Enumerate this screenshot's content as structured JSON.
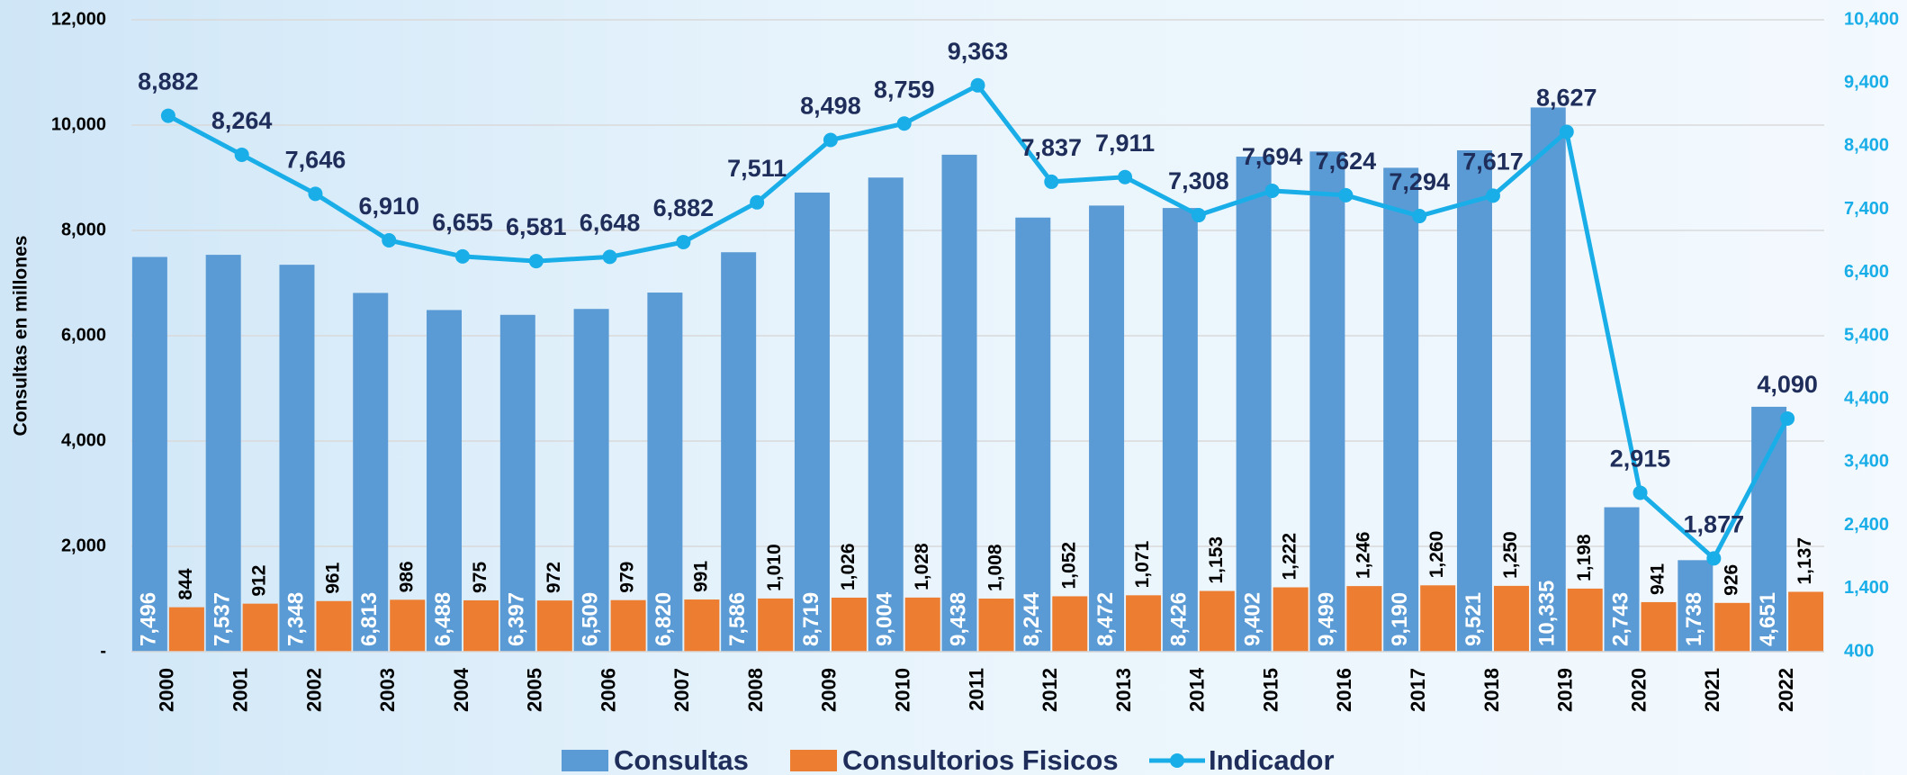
{
  "chart_data": {
    "type": "bar",
    "y_label": "Consultas en millones",
    "categories": [
      "2000",
      "2001",
      "2002",
      "2003",
      "2004",
      "2005",
      "2006",
      "2007",
      "2008",
      "2009",
      "2010",
      "2011",
      "2012",
      "2013",
      "2014",
      "2015",
      "2016",
      "2017",
      "2018",
      "2019",
      "2020",
      "2021",
      "2022"
    ],
    "series": [
      {
        "name": "Consultas",
        "color": "#5b9bd5",
        "values": [
          7496,
          7537,
          7348,
          6813,
          6488,
          6397,
          6509,
          6820,
          7586,
          8719,
          9004,
          9438,
          8244,
          8472,
          8426,
          9402,
          9499,
          9190,
          9521,
          10335,
          2743,
          1738,
          4651
        ],
        "value_labels": [
          "7,496",
          "7,537",
          "7,348",
          "6,813",
          "6,488",
          "6,397",
          "6,509",
          "6,820",
          "7,586",
          "8,719",
          "9,004",
          "9,438",
          "8,244",
          "8,472",
          "8,426",
          "9,402",
          "9,499",
          "9,190",
          "9,521",
          "10,335",
          "2,743",
          "1,738",
          "4,651"
        ]
      },
      {
        "name": "Consultorios Fisicos",
        "color": "#ed7d31",
        "values": [
          844,
          912,
          961,
          986,
          975,
          972,
          979,
          991,
          1010,
          1026,
          1028,
          1008,
          1052,
          1071,
          1153,
          1222,
          1246,
          1260,
          1250,
          1198,
          941,
          926,
          1137
        ],
        "value_labels": [
          "844",
          "912",
          "961",
          "986",
          "975",
          "972",
          "979",
          "991",
          "1,010",
          "1,026",
          "1,028",
          "1,008",
          "1,052",
          "1,071",
          "1,153",
          "1,222",
          "1,246",
          "1,260",
          "1,250",
          "1,198",
          "941",
          "926",
          "1,137"
        ]
      },
      {
        "name": "Indicador",
        "color": "#1aaee8",
        "type": "line",
        "axis": "y2",
        "values": [
          8882,
          8264,
          7646,
          6910,
          6655,
          6581,
          6648,
          6882,
          7511,
          8498,
          8759,
          9363,
          7837,
          7911,
          7308,
          7694,
          7624,
          7294,
          7617,
          8627,
          2915,
          1877,
          4090
        ],
        "value_labels": [
          "8,882",
          "8,264",
          "7,646",
          "6,910",
          "6,655",
          "6,581",
          "6,648",
          "6,882",
          "7,511",
          "8,498",
          "8,759",
          "9,363",
          "7,837",
          "7,911",
          "7,308",
          "7,694",
          "7,624",
          "7,294",
          "7,617",
          "8,627",
          "2,915",
          "1,877",
          "4,090"
        ]
      }
    ],
    "ylim": [
      0,
      12000
    ],
    "yticks": [
      {
        "value": 0,
        "label": "-"
      },
      {
        "value": 2000,
        "label": "2,000"
      },
      {
        "value": 4000,
        "label": "4,000"
      },
      {
        "value": 6000,
        "label": "6,000"
      },
      {
        "value": 8000,
        "label": "8,000"
      },
      {
        "value": 10000,
        "label": "10,000"
      },
      {
        "value": 12000,
        "label": "12,000"
      }
    ],
    "y2lim": [
      400,
      10400
    ],
    "y2ticks": [
      400,
      {
        "value": 1400,
        "label": "1,400"
      },
      {
        "value": 2400,
        "label": "2,400"
      },
      {
        "value": 3400,
        "label": "3,400"
      },
      {
        "value": 4400,
        "label": "4,400"
      },
      {
        "value": 5400,
        "label": "5,400"
      },
      {
        "value": 6400,
        "label": "6,400"
      },
      {
        "value": 7400,
        "label": "7,400"
      },
      {
        "value": 8400,
        "label": "8,400"
      },
      {
        "value": 9400,
        "label": "9,400"
      },
      {
        "value": 10400,
        "label": "10,400"
      }
    ],
    "grid": true,
    "legend": "bottom"
  }
}
